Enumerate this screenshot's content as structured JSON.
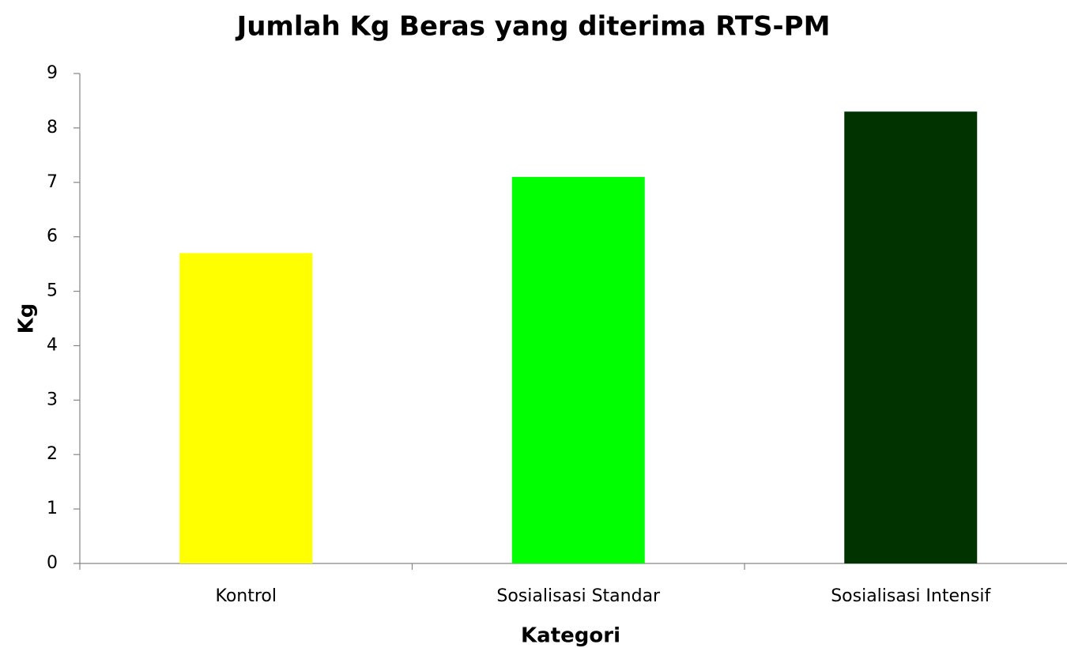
{
  "chart_data": {
    "type": "bar",
    "title": "Jumlah Kg Beras yang diterima RTS-PM",
    "x_label": "Kategori",
    "y_label": "Kg",
    "categories": [
      "Kontrol",
      "Sosialisasi Standar",
      "Sosialisasi Intensif"
    ],
    "values": [
      5.7,
      7.1,
      8.3
    ],
    "colors": [
      "#ffff00",
      "#00ff00",
      "#003300"
    ],
    "ylim": [
      0,
      9
    ],
    "yticks": [
      0,
      1,
      2,
      3,
      4,
      5,
      6,
      7,
      8,
      9
    ],
    "grid": false
  }
}
